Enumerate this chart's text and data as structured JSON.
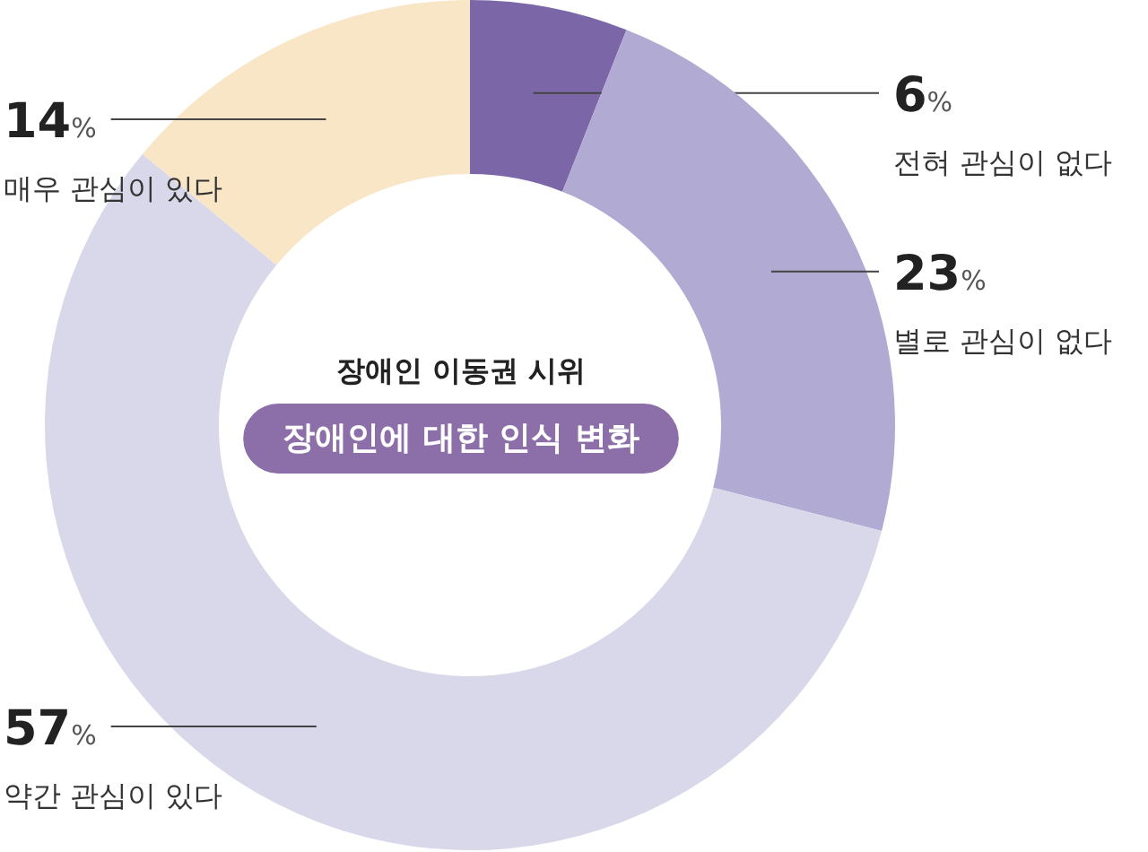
{
  "chart_data": {
    "type": "donut",
    "title": "장애인 이동권 시위",
    "subtitle": "장애인에 대한 인식 변화",
    "categories": [
      "전혀 관심이 없다",
      "별로 관심이 없다",
      "약간 관심이 있다",
      "매우 관심이 있다"
    ],
    "values": [
      6,
      23,
      57,
      14
    ],
    "colors": [
      "#7b67a8",
      "#b1aad3",
      "#d9d8ea",
      "#f8e6c6"
    ],
    "value_labels": [
      "6%",
      "23%",
      "57%",
      "14%"
    ]
  }
}
